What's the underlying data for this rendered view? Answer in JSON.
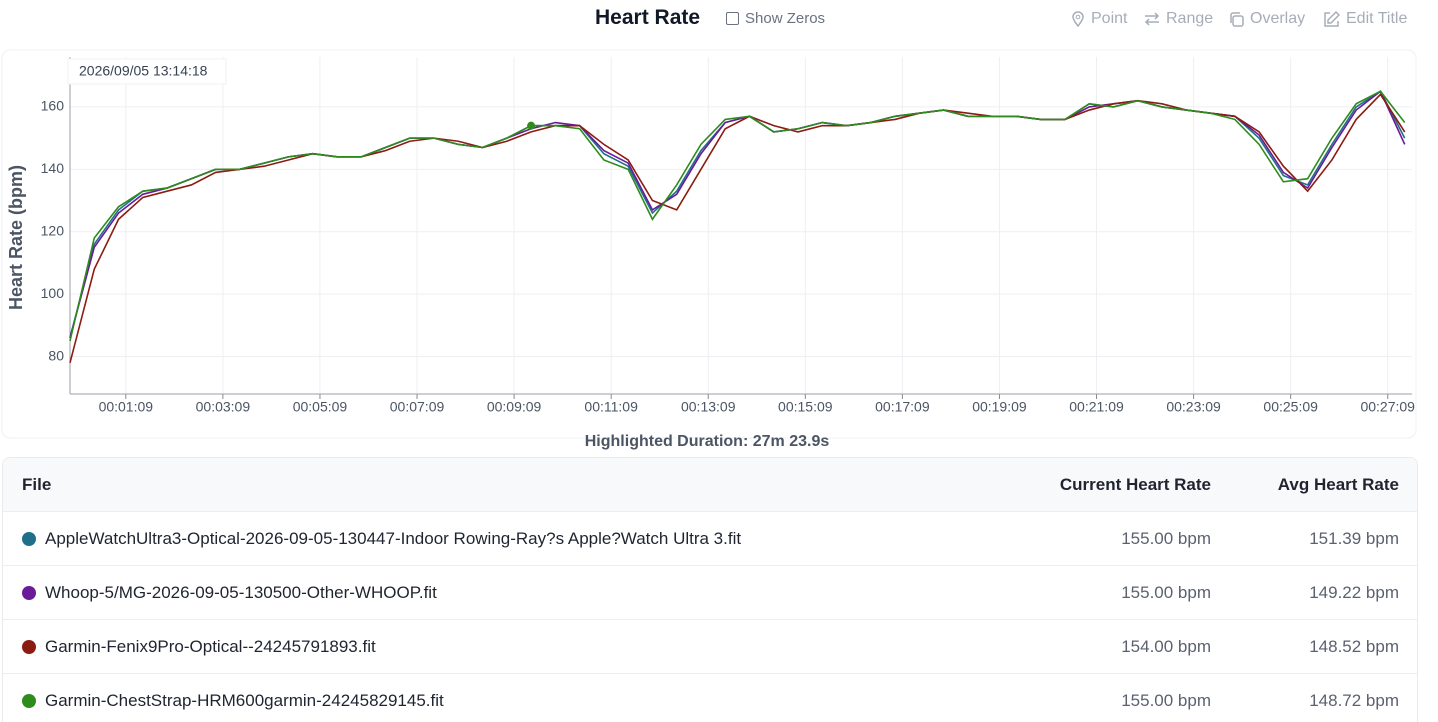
{
  "toolbar": {
    "show_zeros": "Show Zeros",
    "point": "Point",
    "range": "Range",
    "overlay": "Overlay",
    "edit_title": "Edit Title"
  },
  "chart_data": {
    "type": "line",
    "title": "Heart Rate",
    "ylabel": "Heart Rate (bpm)",
    "tooltip": "2026/09/05 13:14:18",
    "highlight_duration": "Highlighted Duration: 27m 23.9s",
    "x": [
      0,
      30,
      60,
      90,
      120,
      150,
      180,
      210,
      240,
      270,
      300,
      330,
      360,
      390,
      420,
      450,
      480,
      510,
      540,
      570,
      600,
      630,
      660,
      690,
      720,
      750,
      780,
      810,
      840,
      870,
      900,
      930,
      960,
      990,
      1020,
      1050,
      1080,
      1110,
      1140,
      1170,
      1200,
      1230,
      1260,
      1290,
      1320,
      1350,
      1380,
      1410,
      1440,
      1470,
      1500,
      1530,
      1560,
      1590,
      1620,
      1650
    ],
    "xlim": [
      0,
      1659
    ],
    "xticks": [
      {
        "value": 69,
        "label": "00:01:09"
      },
      {
        "value": 189,
        "label": "00:03:09"
      },
      {
        "value": 309,
        "label": "00:05:09"
      },
      {
        "value": 429,
        "label": "00:07:09"
      },
      {
        "value": 549,
        "label": "00:09:09"
      },
      {
        "value": 669,
        "label": "00:11:09"
      },
      {
        "value": 789,
        "label": "00:13:09"
      },
      {
        "value": 909,
        "label": "00:15:09"
      },
      {
        "value": 1029,
        "label": "00:17:09"
      },
      {
        "value": 1149,
        "label": "00:19:09"
      },
      {
        "value": 1269,
        "label": "00:21:09"
      },
      {
        "value": 1389,
        "label": "00:23:09"
      },
      {
        "value": 1509,
        "label": "00:25:09"
      },
      {
        "value": 1629,
        "label": "00:27:09"
      }
    ],
    "ylim": [
      68,
      176
    ],
    "yticks": [
      80,
      100,
      120,
      140,
      160
    ],
    "grid": true,
    "highlight": {
      "series": 3,
      "index": 19
    },
    "series": [
      {
        "name": "AppleWatchUltra3",
        "color": "#1f6f8b",
        "values": [
          86,
          116,
          127,
          133,
          134,
          137,
          140,
          140,
          142,
          144,
          145,
          144,
          144,
          147,
          150,
          150,
          148,
          147,
          150,
          154,
          154,
          154,
          145,
          141,
          126,
          133,
          146,
          155,
          157,
          152,
          153,
          155,
          154,
          155,
          157,
          158,
          159,
          157,
          157,
          157,
          156,
          156,
          161,
          160,
          162,
          160,
          159,
          158,
          157,
          150,
          138,
          135,
          148,
          160,
          165,
          150
        ]
      },
      {
        "name": "Whoop",
        "color": "#6a1b9a",
        "values": [
          86,
          115,
          126,
          132,
          134,
          137,
          140,
          140,
          142,
          144,
          145,
          144,
          144,
          147,
          150,
          150,
          148,
          147,
          150,
          153,
          155,
          154,
          146,
          142,
          127,
          132,
          145,
          155,
          157,
          152,
          153,
          155,
          154,
          155,
          157,
          158,
          159,
          157,
          157,
          157,
          156,
          156,
          160,
          161,
          162,
          160,
          159,
          158,
          157,
          151,
          139,
          134,
          147,
          159,
          165,
          148
        ]
      },
      {
        "name": "Garmin Fenix",
        "color": "#8b1c12",
        "values": [
          78,
          108,
          124,
          131,
          133,
          135,
          139,
          140,
          141,
          143,
          145,
          144,
          144,
          146,
          149,
          150,
          149,
          147,
          149,
          152,
          154,
          154,
          148,
          143,
          130,
          127,
          140,
          153,
          157,
          154,
          152,
          154,
          154,
          155,
          156,
          158,
          159,
          158,
          157,
          157,
          156,
          156,
          159,
          161,
          162,
          161,
          159,
          158,
          157,
          152,
          141,
          133,
          143,
          156,
          164,
          152
        ]
      },
      {
        "name": "Garmin ChestStrap",
        "color": "#2e8b1e",
        "values": [
          85,
          118,
          128,
          133,
          134,
          137,
          140,
          140,
          142,
          144,
          145,
          144,
          144,
          147,
          150,
          150,
          148,
          147,
          150,
          154,
          154,
          153,
          143,
          140,
          124,
          135,
          148,
          156,
          157,
          152,
          153,
          155,
          154,
          155,
          157,
          158,
          159,
          157,
          157,
          157,
          156,
          156,
          161,
          160,
          162,
          160,
          159,
          158,
          156,
          148,
          136,
          137,
          150,
          161,
          165,
          155
        ]
      }
    ]
  },
  "table": {
    "columns": [
      "File",
      "Current Heart Rate",
      "Avg Heart Rate"
    ],
    "rows": [
      [
        "AppleWatchUltra3-Optical-2026-09-05-130447-Indoor Rowing-Ray?s Apple?Watch Ultra 3.fit",
        "155.00 bpm",
        "151.39 bpm"
      ],
      [
        "Whoop-5/MG-2026-09-05-130500-Other-WHOOP.fit",
        "155.00 bpm",
        "149.22 bpm"
      ],
      [
        "Garmin-Fenix9Pro-Optical--24245791893.fit",
        "154.00 bpm",
        "148.52 bpm"
      ],
      [
        "Garmin-ChestStrap-HRM600garmin-24245829145.fit",
        "155.00 bpm",
        "148.72 bpm"
      ]
    ]
  }
}
